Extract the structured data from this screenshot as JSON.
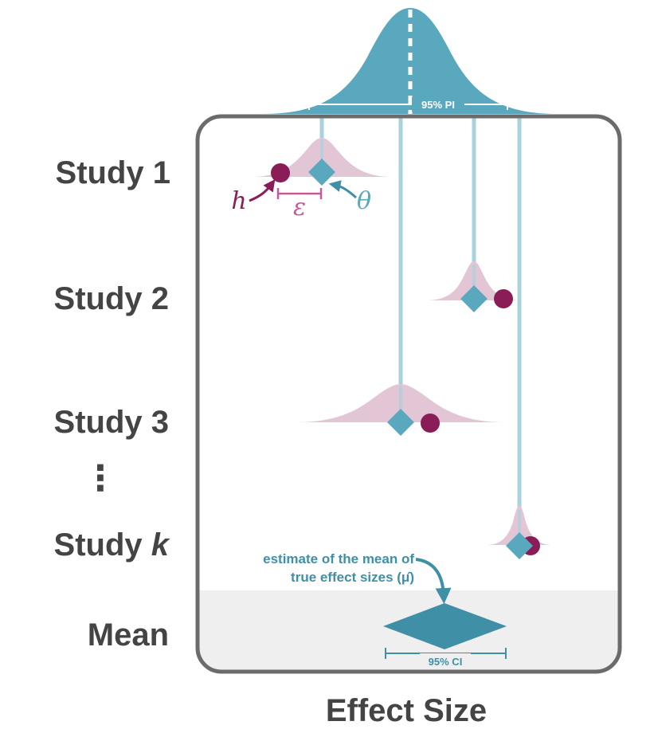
{
  "colors": {
    "teal": "#5aa8bd",
    "teal_dark": "#3f8fa6",
    "teal_light": "#a9d2dd",
    "pink_fill": "#e2c6d6",
    "plum": "#8a1c57",
    "pink_text": "#c55a9a",
    "gray_text": "#444444",
    "frame": "#6b6b6b",
    "mean_band": "#efefef"
  },
  "labels": {
    "rows": [
      "Study 1",
      "Study 2",
      "Study 3",
      "Mean"
    ],
    "study_k_prefix": "Study ",
    "study_k_var": "k",
    "ellipsis": "⋮",
    "x_axis": "Effect Size",
    "pi": "95% PI",
    "ci": "95% CI",
    "symbol_h": "h",
    "symbol_eps": "ε",
    "symbol_theta": "θ",
    "annotation_line1": "estimate of the mean of",
    "annotation_line2": "true effect sizes (μ̂)"
  }
}
